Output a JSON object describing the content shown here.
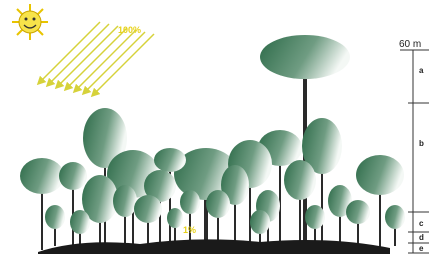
{
  "sun_label": "100%",
  "floor_label": "1%",
  "scale": {
    "top_label": "60 m",
    "layers": [
      "a",
      "b",
      "c",
      "d",
      "e"
    ]
  }
}
